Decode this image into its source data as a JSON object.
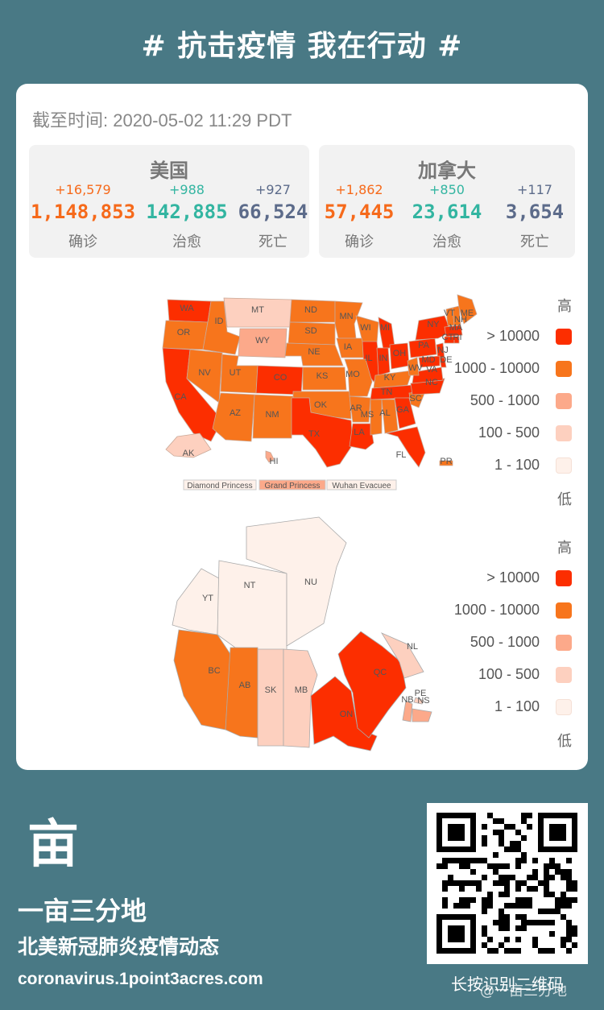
{
  "header": {
    "hashtag": "# 抗击疫情 我在行动 #"
  },
  "card": {
    "asof": "截至时间: 2020-05-02  11:29   PDT",
    "us": {
      "name": "美国",
      "confirmed": {
        "delta": "+16,579",
        "value": "1,148,853",
        "label": "确诊"
      },
      "recovered": {
        "delta": "+988",
        "value": "142,885",
        "label": "治愈"
      },
      "deaths": {
        "delta": "+927",
        "value": "66,524",
        "label": "死亡"
      }
    },
    "canada": {
      "name": "加拿大",
      "confirmed": {
        "delta": "+1,862",
        "value": "57,445",
        "label": "确诊"
      },
      "recovered": {
        "delta": "+850",
        "value": "23,614",
        "label": "治愈"
      },
      "deaths": {
        "delta": "+117",
        "value": "3,654",
        "label": "死亡"
      }
    }
  },
  "legend": {
    "high": "高",
    "low": "低",
    "items": [
      {
        "label": "> 10000",
        "color": "#fc2e00"
      },
      {
        "label": "1000 - 10000",
        "color": "#f7751c"
      },
      {
        "label": "500 - 1000",
        "color": "#fca98a"
      },
      {
        "label": "100 - 500",
        "color": "#fdd0bf"
      },
      {
        "label": "1 - 100",
        "color": "#fef1ea"
      }
    ]
  },
  "us_map": {
    "states": [
      "WA",
      "MT",
      "ND",
      "MN",
      "OR",
      "ID",
      "SD",
      "WI",
      "MI",
      "ME",
      "WY",
      "NE",
      "IA",
      "NY",
      "NH",
      "NV",
      "UT",
      "CO",
      "KS",
      "IL",
      "OH",
      "PA",
      "CA",
      "MO",
      "KY",
      "WV",
      "VA",
      "MD",
      "DE",
      "AZ",
      "NM",
      "OK",
      "AR",
      "TN",
      "NC",
      "SC",
      "GA",
      "AL",
      "MS",
      "LA",
      "TX",
      "FL",
      "AK",
      "HI",
      "PR",
      "IN",
      "NJ",
      "CT",
      "RI",
      "MA",
      "VT"
    ],
    "ships": [
      "Diamond Princess",
      "Grand Princess",
      "Wuhan Evacuee"
    ]
  },
  "canada_map": {
    "provinces": [
      "YT",
      "NT",
      "NU",
      "BC",
      "AB",
      "SK",
      "MB",
      "ON",
      "QC",
      "NL",
      "PE",
      "NB",
      "NS"
    ]
  },
  "footer": {
    "brand": "一亩三分地",
    "tagline": "北美新冠肺炎疫情动态",
    "url": "coronavirus.1point3acres.com",
    "qr_caption": "长按识别二维码",
    "watermark": "@一亩三分地",
    "logo_glyph": "亩"
  },
  "colors": {
    "background": "#497985",
    "card": "#ffffff"
  }
}
